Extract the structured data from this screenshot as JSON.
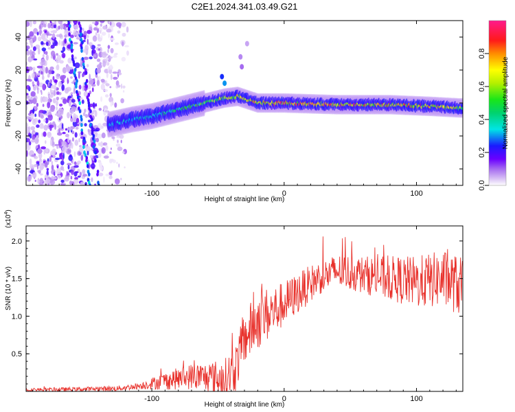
{
  "title": "C2E1.2024.341.03.49.G21",
  "chart_data": [
    {
      "type": "heatmap",
      "xlabel": "Height of straight line (km)",
      "ylabel": "Frequency (Hz)",
      "xlim": [
        -195,
        135
      ],
      "ylim": [
        -50,
        50
      ],
      "xticks": [
        -100,
        0,
        100
      ],
      "yticks": [
        -40,
        -20,
        0,
        20,
        40
      ],
      "colorbar": {
        "label": "Normalized spectral amplitude",
        "range": [
          0,
          1
        ],
        "ticks": [
          0.0,
          0.2,
          0.4,
          0.6,
          0.8
        ],
        "tick_labels": [
          "0.0",
          "0.2",
          "0.4",
          "0.6",
          "0.8"
        ]
      },
      "ridge": {
        "description_points": [
          [
            -132,
            -13
          ],
          [
            -115,
            -10
          ],
          [
            -100,
            -8
          ],
          [
            -80,
            -4
          ],
          [
            -60,
            0
          ],
          [
            -45,
            3
          ],
          [
            -35,
            4
          ],
          [
            -20,
            0
          ],
          [
            0,
            0
          ],
          [
            40,
            -1
          ],
          [
            80,
            -1
          ],
          [
            110,
            -2
          ],
          [
            133,
            -3
          ]
        ],
        "strength": [
          [
            -132,
            0.35
          ],
          [
            -110,
            0.4
          ],
          [
            -80,
            0.5
          ],
          [
            -60,
            0.6
          ],
          [
            -40,
            0.75
          ],
          [
            -20,
            0.85
          ],
          [
            0,
            0.9
          ],
          [
            40,
            0.92
          ],
          [
            80,
            0.88
          ],
          [
            110,
            0.85
          ],
          [
            133,
            0.75
          ]
        ]
      },
      "streaks": [
        {
          "x_top": -163,
          "x_bottom": -147,
          "strength": 0.25
        },
        {
          "x_top": -155,
          "x_bottom": -140,
          "strength": 0.22
        }
      ]
    },
    {
      "type": "line",
      "xlabel": "Height of straight line (km)",
      "ylabel": "SNR (10 * v/v)",
      "y_multiplier": "(x10^4)",
      "xlim": [
        -195,
        135
      ],
      "ylim": [
        0,
        2.2
      ],
      "xticks": [
        -100,
        0,
        100
      ],
      "yticks": [
        0.5,
        1.0,
        1.5,
        2.0
      ],
      "ytick_labels": [
        "0.5",
        "1.0",
        "1.5",
        "2.0"
      ],
      "color": "#e8302a",
      "series": [
        {
          "mean": [
            [
              -195,
              0.02
            ],
            [
              -150,
              0.03
            ],
            [
              -125,
              0.04
            ],
            [
              -110,
              0.07
            ],
            [
              -90,
              0.14
            ],
            [
              -70,
              0.2
            ],
            [
              -55,
              0.18
            ],
            [
              -45,
              0.16
            ],
            [
              -37,
              0.3
            ],
            [
              -30,
              0.7
            ],
            [
              -20,
              0.95
            ],
            [
              -5,
              1.1
            ],
            [
              10,
              1.3
            ],
            [
              25,
              1.5
            ],
            [
              40,
              1.6
            ],
            [
              60,
              1.55
            ],
            [
              80,
              1.5
            ],
            [
              100,
              1.45
            ],
            [
              120,
              1.5
            ],
            [
              133,
              1.4
            ]
          ],
          "spread": [
            [
              -195,
              0.02
            ],
            [
              -110,
              0.04
            ],
            [
              -90,
              0.12
            ],
            [
              -60,
              0.2
            ],
            [
              -40,
              0.3
            ],
            [
              -20,
              0.4
            ],
            [
              0,
              0.3
            ],
            [
              30,
              0.22
            ],
            [
              60,
              0.25
            ],
            [
              100,
              0.35
            ],
            [
              133,
              0.4
            ]
          ]
        }
      ]
    }
  ]
}
